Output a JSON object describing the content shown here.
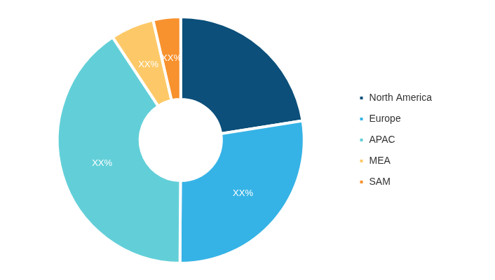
{
  "chart_data": {
    "type": "doughnut",
    "categories": [
      "North America",
      "Europe",
      "APAC",
      "MEA",
      "SAM"
    ],
    "values": [
      22.5,
      27.6,
      40.6,
      5.7,
      3.6
    ],
    "value_labels": [
      null,
      "XX%",
      "XX%",
      "XX%",
      "XX%"
    ],
    "colors": [
      "#0b4f7a",
      "#36b3e6",
      "#62cfd8",
      "#fdc968",
      "#f7922e"
    ],
    "legend": "right",
    "data_labels": true
  }
}
